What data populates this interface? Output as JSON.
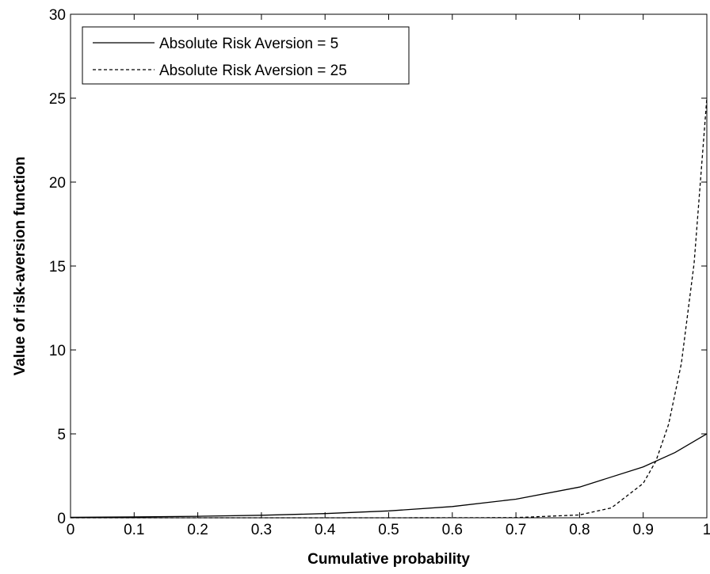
{
  "chart_data": {
    "type": "line",
    "title": "",
    "xlabel": "Cumulative probability",
    "ylabel": "Value of risk-aversion function",
    "xlim": [
      0,
      1
    ],
    "ylim": [
      0,
      30
    ],
    "x_ticks": [
      "0",
      "0.1",
      "0.2",
      "0.3",
      "0.4",
      "0.5",
      "0.6",
      "0.7",
      "0.8",
      "0.9",
      "1"
    ],
    "y_ticks": [
      "0",
      "5",
      "10",
      "15",
      "20",
      "25",
      "30"
    ],
    "grid": false,
    "legend_position": "top-left",
    "series": [
      {
        "name": "Absolute Risk Aversion = 5",
        "line_style": "solid",
        "color": "#000000",
        "points": [
          [
            0,
            0.03
          ],
          [
            0.1,
            0.05
          ],
          [
            0.2,
            0.09
          ],
          [
            0.3,
            0.15
          ],
          [
            0.4,
            0.25
          ],
          [
            0.5,
            0.41
          ],
          [
            0.6,
            0.67
          ],
          [
            0.7,
            1.11
          ],
          [
            0.8,
            1.83
          ],
          [
            0.9,
            3.03
          ],
          [
            0.95,
            3.89
          ],
          [
            1,
            5.0
          ]
        ]
      },
      {
        "name": "Absolute Risk Aversion = 25",
        "line_style": "dashed",
        "color": "#000000",
        "points": [
          [
            0,
            0
          ],
          [
            0.5,
            0
          ],
          [
            0.7,
            0.01
          ],
          [
            0.8,
            0.17
          ],
          [
            0.85,
            0.59
          ],
          [
            0.9,
            2.05
          ],
          [
            0.92,
            3.38
          ],
          [
            0.94,
            5.58
          ],
          [
            0.96,
            9.2
          ],
          [
            0.98,
            15.16
          ],
          [
            1,
            25.0
          ]
        ]
      }
    ]
  }
}
